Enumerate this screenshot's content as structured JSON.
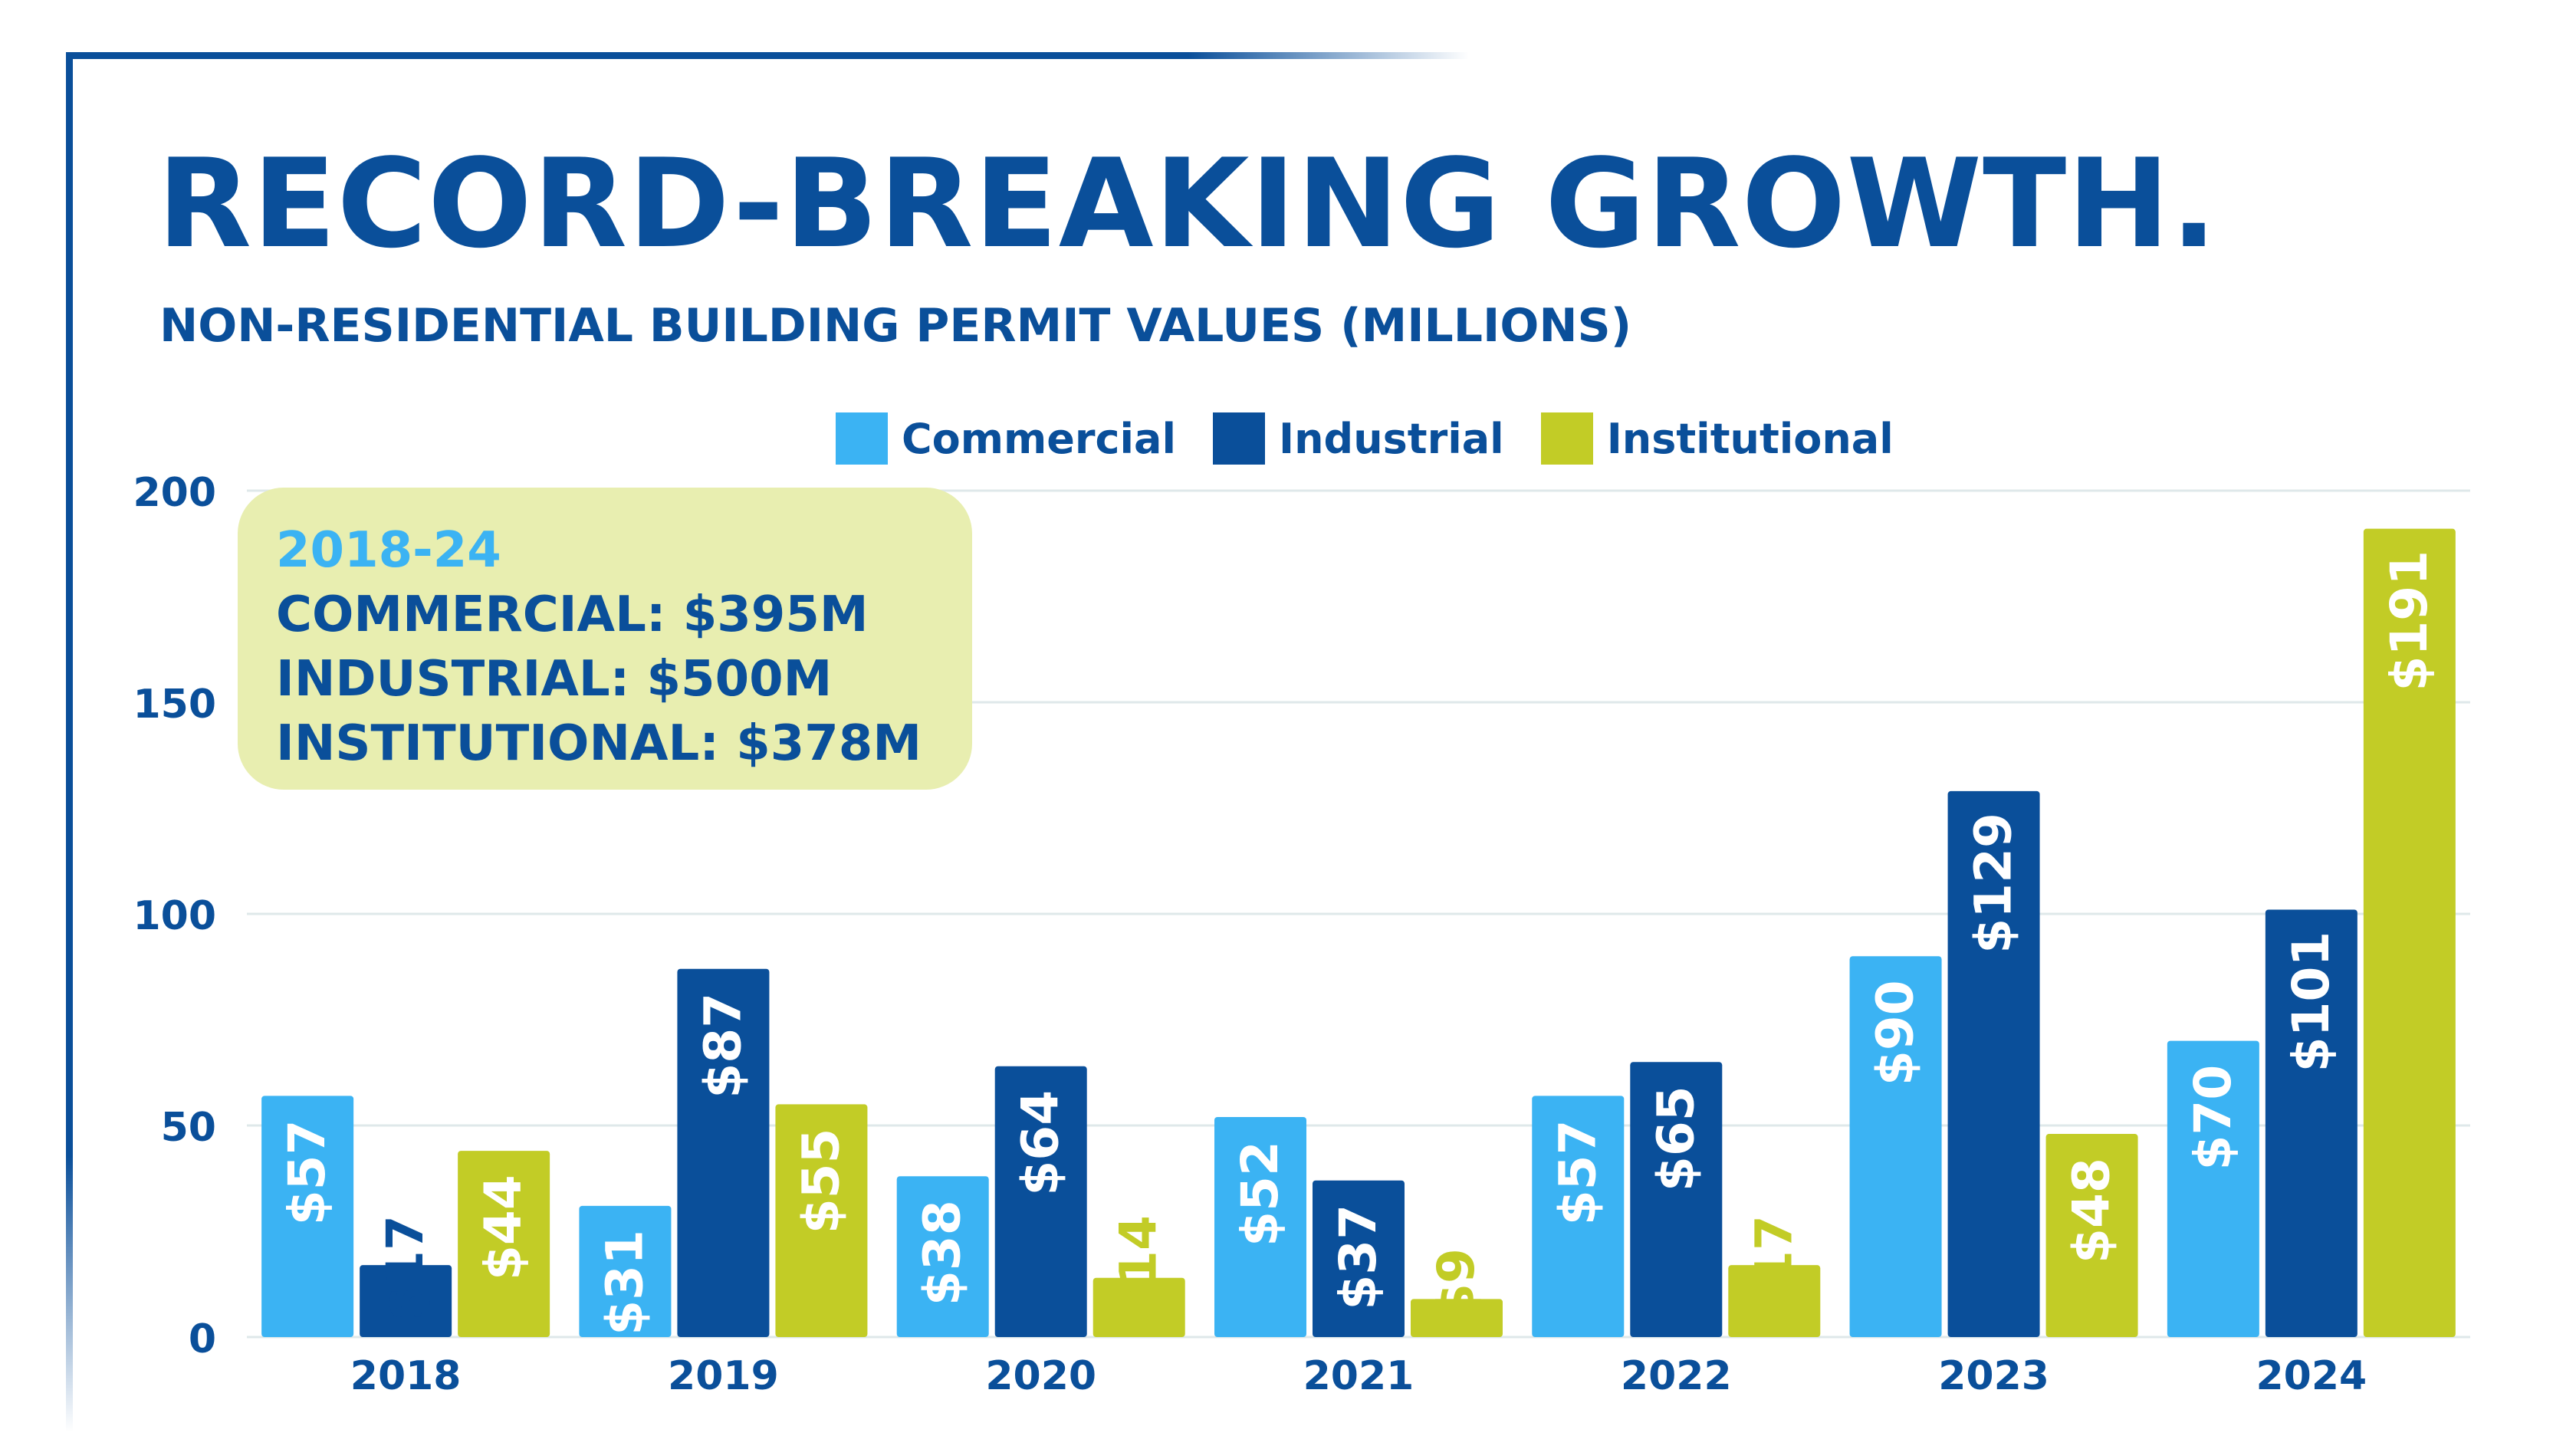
{
  "title": "RECORD-BREAKING GROWTH.",
  "subtitle": "NON-RESIDENTIAL BUILDING PERMIT VALUES (MILLIONS)",
  "callout": {
    "period": "2018-24",
    "lines": [
      "COMMERCIAL: $395M",
      "INDUSTRIAL: $500M",
      "INSTITUTIONAL: $378M"
    ]
  },
  "colors": {
    "brand": "#0a4f9a",
    "commercial": "#3bb3f3",
    "industrial": "#0a4f9a",
    "institutional": "#c2cc26",
    "callout_bg": "#e8eeb0",
    "grid": "#dfe8ea"
  },
  "chart_data": {
    "type": "bar",
    "categories": [
      "2018",
      "2019",
      "2020",
      "2021",
      "2022",
      "2023",
      "2024"
    ],
    "series": [
      {
        "name": "Commercial",
        "values": [
          57,
          31,
          38,
          52,
          57,
          90,
          70
        ],
        "labels": [
          "$57",
          "$31",
          "$38",
          "$52",
          "$57",
          "$90",
          "$70"
        ]
      },
      {
        "name": "Industrial",
        "values": [
          17,
          87,
          64,
          37,
          65,
          129,
          101
        ],
        "labels": [
          "$17",
          "$87",
          "$64",
          "$37",
          "$65",
          "$129",
          "$101"
        ]
      },
      {
        "name": "Institutional",
        "values": [
          44,
          55,
          14,
          9,
          17,
          48,
          191
        ],
        "labels": [
          "$44",
          "$55",
          "$14",
          "$9",
          "$17",
          "$48",
          "$191"
        ]
      }
    ],
    "yticks": [
      "0",
      "50",
      "100",
      "150",
      "200"
    ],
    "ylim": [
      0,
      200
    ],
    "grid": true,
    "legend": "top-center"
  }
}
